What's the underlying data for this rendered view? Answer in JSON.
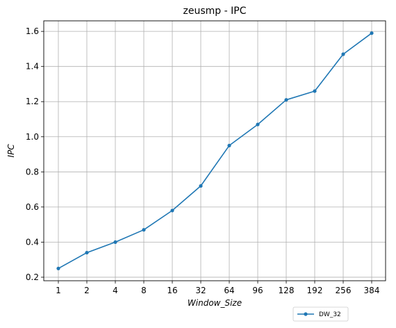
{
  "chart_data": {
    "type": "line",
    "title": "zeusmp - IPC",
    "xlabel": "Window_Size",
    "ylabel": "IPC",
    "categories": [
      "1",
      "2",
      "4",
      "8",
      "16",
      "32",
      "64",
      "96",
      "128",
      "192",
      "256",
      "384"
    ],
    "series": [
      {
        "name": "DW_32",
        "values": [
          0.25,
          0.34,
          0.4,
          0.47,
          0.58,
          0.72,
          0.95,
          1.07,
          1.21,
          1.26,
          1.47,
          1.59
        ],
        "color": "#1f77b4",
        "marker": "circle"
      }
    ],
    "ylim": [
      0.18,
      1.66
    ],
    "yticks": [
      "0.2",
      "0.4",
      "0.6",
      "0.8",
      "1.0",
      "1.2",
      "1.4",
      "1.6"
    ],
    "grid": true,
    "legend_position": "bottom-right, below axes"
  }
}
